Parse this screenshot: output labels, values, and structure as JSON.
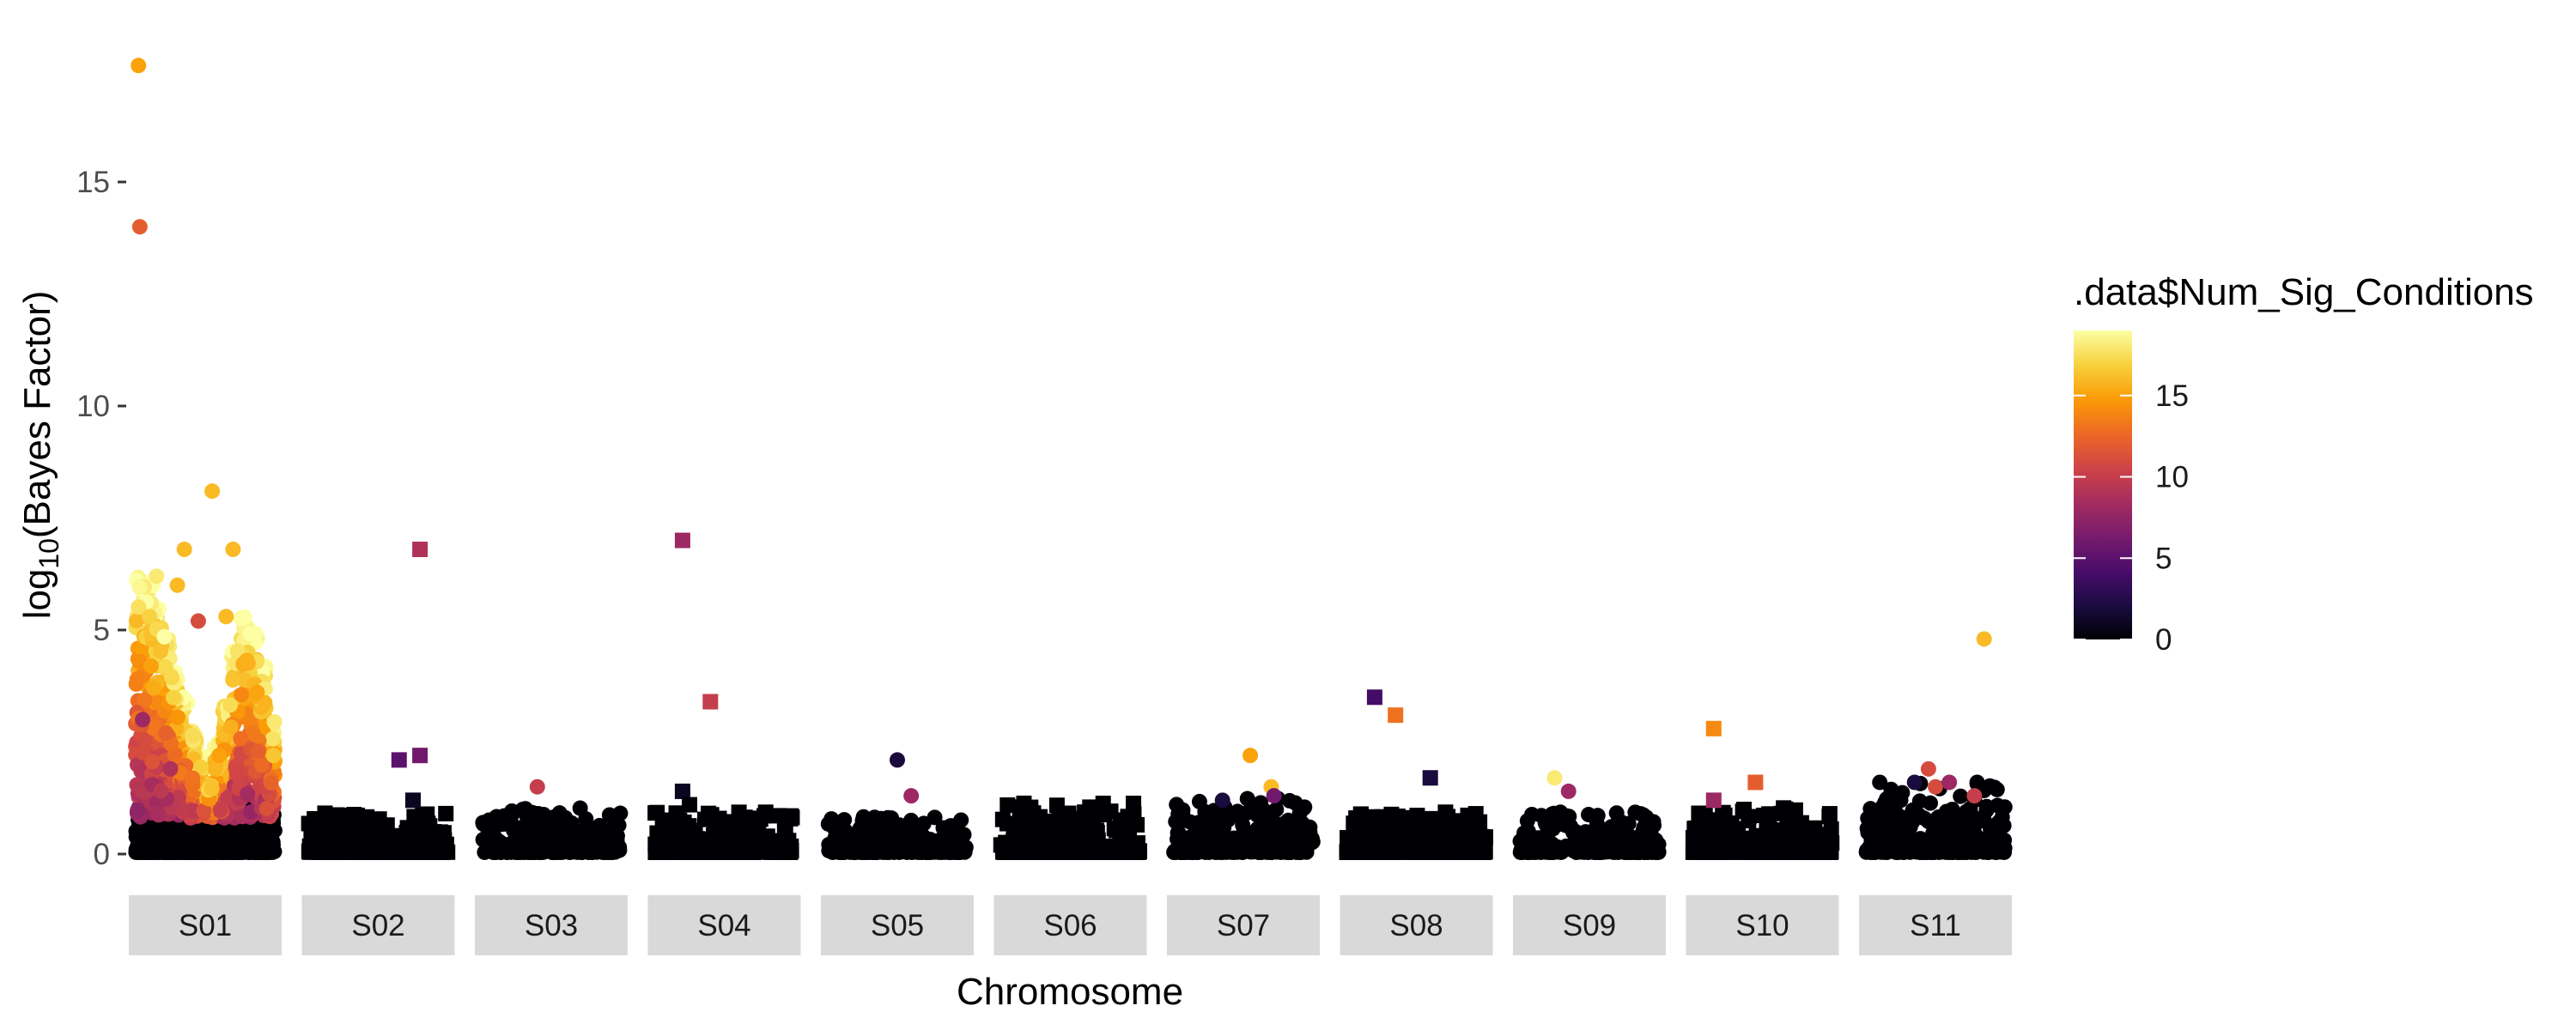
{
  "chart_data": {
    "type": "scatter",
    "subtype": "faceted-manhattan",
    "xlabel": "Chromosome",
    "ylabel": "log10(Bayes Factor)",
    "ylabel_parts": [
      "log",
      "10",
      "(Bayes Factor)"
    ],
    "ylim": [
      -0.5,
      18.2
    ],
    "y_ticks": [
      0,
      5,
      10,
      15
    ],
    "grid": false,
    "legend": {
      "title": ".data$Num_Sig_Conditions",
      "position": "right",
      "range": [
        0,
        19
      ],
      "ticks": [
        0,
        5,
        10,
        15
      ],
      "colormap": "inferno",
      "colors": [
        "#000004",
        "#1b0c41",
        "#4a0c6b",
        "#781c6d",
        "#a52c60",
        "#cf4446",
        "#ed6925",
        "#fb9b06",
        "#f7d13d",
        "#fcffa4"
      ]
    },
    "chromosomes": [
      "S01",
      "S02",
      "S03",
      "S04",
      "S05",
      "S06",
      "S07",
      "S08",
      "S09",
      "S10",
      "S11"
    ],
    "shapes": {
      "S01": "circle",
      "S02": "square",
      "S03": "circle",
      "S04": "square",
      "S05": "circle",
      "S06": "square",
      "S07": "circle",
      "S08": "square",
      "S09": "circle",
      "S10": "square",
      "S11": "circle"
    },
    "highlights": {
      "S01": [
        [
          0.02,
          17.6,
          15
        ],
        [
          0.03,
          14.0,
          12
        ],
        [
          0.55,
          8.1,
          16
        ],
        [
          0.35,
          6.8,
          16
        ],
        [
          0.7,
          6.8,
          16
        ],
        [
          0.15,
          6.2,
          18
        ],
        [
          0.3,
          6.0,
          16
        ],
        [
          0.1,
          5.3,
          17
        ],
        [
          0.45,
          5.2,
          11
        ],
        [
          0.65,
          5.3,
          16
        ],
        [
          0.05,
          3.0,
          8
        ],
        [
          0.25,
          1.9,
          9
        ],
        [
          0.6,
          2.2,
          15
        ]
      ],
      "S02": [
        [
          0.8,
          6.8,
          9
        ],
        [
          0.65,
          2.1,
          5
        ],
        [
          0.8,
          2.2,
          6
        ],
        [
          0.75,
          1.2,
          1
        ]
      ],
      "S03": [
        [
          0.4,
          1.5,
          10
        ]
      ],
      "S04": [
        [
          0.2,
          7.0,
          8
        ],
        [
          0.4,
          3.4,
          10
        ],
        [
          0.2,
          1.4,
          1
        ],
        [
          0.25,
          1.1,
          0
        ]
      ],
      "S05": [
        [
          0.5,
          2.1,
          2
        ],
        [
          0.6,
          1.3,
          8
        ]
      ],
      "S06": [],
      "S07": [
        [
          0.55,
          2.2,
          15
        ],
        [
          0.7,
          1.5,
          16
        ],
        [
          0.72,
          1.3,
          6
        ],
        [
          0.35,
          1.2,
          2
        ]
      ],
      "S08": [
        [
          0.2,
          3.5,
          4
        ],
        [
          0.35,
          3.1,
          13
        ],
        [
          0.6,
          1.7,
          2
        ]
      ],
      "S09": [
        [
          0.25,
          1.7,
          18
        ],
        [
          0.35,
          1.4,
          8
        ]
      ],
      "S10": [
        [
          0.15,
          2.8,
          14
        ],
        [
          0.45,
          1.6,
          12
        ],
        [
          0.15,
          1.2,
          8
        ]
      ],
      "S11": [
        [
          0.45,
          1.9,
          11
        ],
        [
          0.35,
          1.6,
          2
        ],
        [
          0.5,
          1.5,
          11
        ],
        [
          0.6,
          1.6,
          8
        ],
        [
          0.8,
          1.6,
          0
        ],
        [
          0.78,
          1.3,
          10
        ],
        [
          0.85,
          4.8,
          16
        ],
        [
          0.1,
          1.6,
          0
        ],
        [
          0.25,
          1.2,
          0
        ]
      ]
    },
    "baseline_max": {
      "S01": 1.1,
      "S02": 0.9,
      "S03": 1.0,
      "S04": 0.9,
      "S05": 0.8,
      "S06": 1.1,
      "S07": 1.2,
      "S08": 0.9,
      "S09": 0.9,
      "S10": 1.0,
      "S11": 1.6
    },
    "s01_dense_max": [
      6.2,
      6.0,
      5.5,
      5.0,
      4.2,
      3.5,
      2.8,
      2.2,
      1.8,
      2.5,
      3.5,
      4.8,
      5.3,
      5.0,
      4.2,
      3.0
    ]
  }
}
